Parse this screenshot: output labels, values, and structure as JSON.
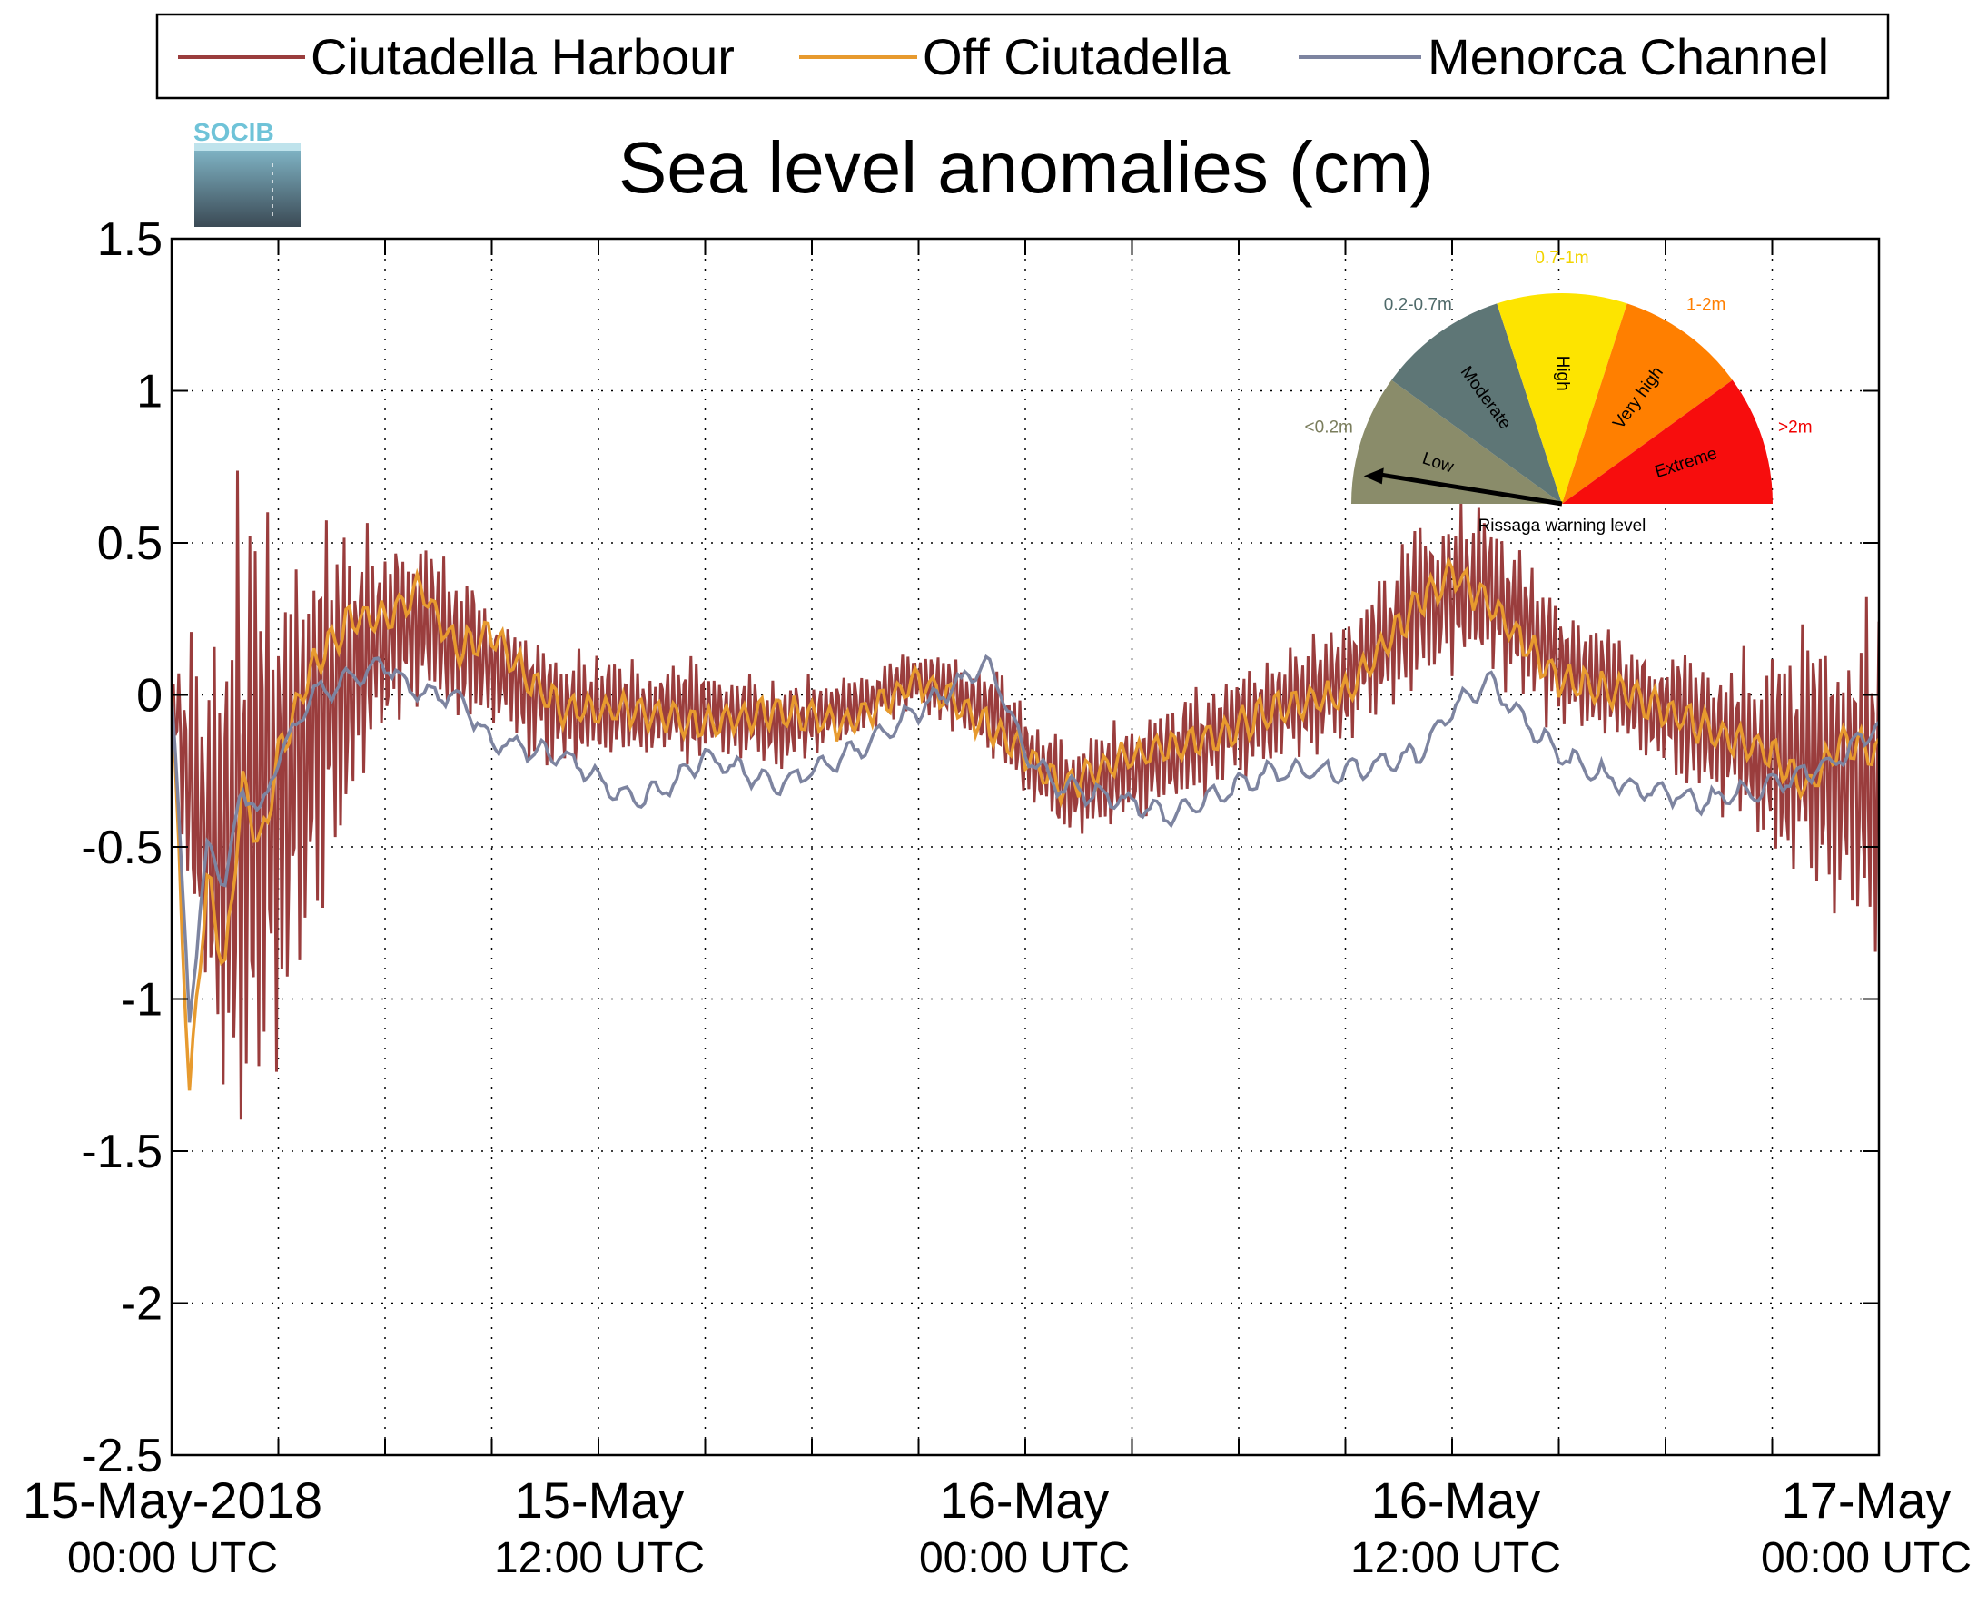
{
  "legend": {
    "entries": [
      {
        "name": "Ciutadella Harbour",
        "color": "#9a3d3d"
      },
      {
        "name": "Off Ciutadella",
        "color": "#e79a2e"
      },
      {
        "name": "Menorca Channel",
        "color": "#7d84a0"
      }
    ]
  },
  "logo": {
    "text": "SOCIB"
  },
  "title": "Sea level anomalies (cm)",
  "gauge": {
    "caption": "Rissaga warning level",
    "indicated_level": "Low",
    "segments": [
      {
        "label": "Low",
        "range": "<0.2m",
        "color": "#8a8c6a",
        "range_color": "#7a7d5c"
      },
      {
        "label": "Moderate",
        "range": "0.2-0.7m",
        "color": "#5e7676",
        "range_color": "#4f6a6a"
      },
      {
        "label": "High",
        "range": "0.7-1m",
        "color": "#fde400",
        "range_color": "#f2d400"
      },
      {
        "label": "Very high",
        "range": "1-2m",
        "color": "#ff7f00",
        "range_color": "#ff7f00"
      },
      {
        "label": "Extreme",
        "range": ">2m",
        "color": "#f70d0d",
        "range_color": "#f00000"
      }
    ]
  },
  "chart_data": {
    "type": "line",
    "title": "Sea level anomalies (cm)",
    "xlabel": "",
    "ylabel": "",
    "ylim": [
      -2.5,
      1.5
    ],
    "yticks": [
      "1.5",
      "1",
      "0.5",
      "0",
      "-0.5",
      "-1",
      "-1.5",
      "-2",
      "-2.5"
    ],
    "xlim_hours": [
      -3,
      45
    ],
    "xticks": [
      {
        "line1": "15-May-2018",
        "line2": "00:00 UTC"
      },
      {
        "line1": "15-May",
        "line2": "12:00 UTC"
      },
      {
        "line1": "16-May",
        "line2": "00:00 UTC"
      },
      {
        "line1": "16-May",
        "line2": "12:00 UTC"
      },
      {
        "line1": "17-May",
        "line2": "00:00 UTC"
      }
    ],
    "grid": true,
    "legend_position": "top",
    "series": [
      {
        "name": "Ciutadella Harbour",
        "color": "#9a3d3d",
        "envelope": {
          "x": [
            -3,
            -2,
            -1,
            0,
            1,
            2,
            3,
            4,
            6,
            8,
            10,
            12,
            14,
            16,
            18,
            20,
            22,
            24,
            26,
            28,
            30,
            32,
            34,
            36,
            38,
            40,
            42,
            44,
            45
          ],
          "center": [
            0.0,
            -0.55,
            -0.45,
            -0.3,
            -0.15,
            0.1,
            0.2,
            0.25,
            0.1,
            -0.05,
            -0.05,
            -0.05,
            -0.1,
            -0.05,
            0.05,
            -0.05,
            -0.3,
            -0.25,
            -0.15,
            -0.05,
            0.05,
            0.3,
            0.35,
            0.1,
            0.0,
            -0.1,
            -0.2,
            -0.25,
            -0.3
          ],
          "amplitude": [
            0.1,
            0.8,
            1.2,
            1.0,
            0.7,
            0.5,
            0.35,
            0.3,
            0.25,
            0.2,
            0.18,
            0.15,
            0.15,
            0.12,
            0.1,
            0.15,
            0.18,
            0.18,
            0.18,
            0.2,
            0.22,
            0.28,
            0.28,
            0.2,
            0.2,
            0.25,
            0.35,
            0.5,
            0.6
          ]
        }
      },
      {
        "name": "Off Ciutadella",
        "color": "#e79a2e",
        "x": [
          -3,
          -2.5,
          -2,
          -1.5,
          -1,
          -0.5,
          0,
          1,
          2,
          3,
          4,
          5,
          6,
          7,
          8,
          10,
          12,
          14,
          16,
          18,
          20,
          22,
          23,
          24,
          26,
          28,
          30,
          31,
          32,
          33,
          34,
          36,
          38,
          40,
          42,
          43,
          44,
          45
        ],
        "values": [
          0.0,
          -1.3,
          -0.6,
          -0.9,
          -0.3,
          -0.5,
          -0.2,
          0.1,
          0.25,
          0.25,
          0.35,
          0.15,
          0.2,
          0.05,
          -0.05,
          -0.05,
          -0.1,
          -0.05,
          -0.1,
          0.05,
          -0.1,
          -0.3,
          -0.25,
          -0.2,
          -0.15,
          -0.05,
          0.0,
          0.15,
          0.3,
          0.4,
          0.3,
          0.05,
          0.0,
          -0.1,
          -0.2,
          -0.3,
          -0.15,
          -0.2
        ]
      },
      {
        "name": "Menorca Channel",
        "color": "#7d84a0",
        "x": [
          -3,
          -2.5,
          -2,
          -1.5,
          -1,
          -0.5,
          0,
          1,
          2,
          3,
          4,
          5,
          6,
          8,
          10,
          11,
          12,
          14,
          16,
          18,
          20,
          21,
          22,
          24,
          25,
          26,
          28,
          30,
          32,
          33,
          34,
          36,
          38,
          40,
          42,
          44,
          45
        ],
        "values": [
          0.0,
          -1.05,
          -0.5,
          -0.6,
          -0.3,
          -0.4,
          -0.2,
          0.0,
          0.05,
          0.1,
          0.0,
          0.0,
          -0.15,
          -0.2,
          -0.35,
          -0.3,
          -0.2,
          -0.3,
          -0.2,
          -0.05,
          0.1,
          -0.2,
          -0.3,
          -0.35,
          -0.4,
          -0.35,
          -0.25,
          -0.25,
          -0.2,
          -0.05,
          0.05,
          -0.2,
          -0.3,
          -0.35,
          -0.3,
          -0.2,
          -0.1
        ]
      }
    ]
  }
}
